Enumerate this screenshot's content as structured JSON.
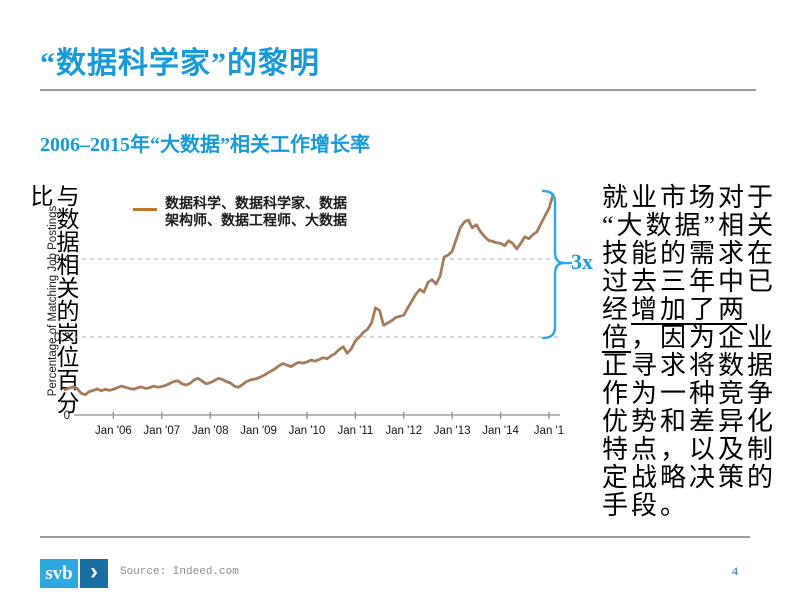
{
  "slide": {
    "title": "“数据科学家”的黎明",
    "subtitle": "2006–2015年“大数据”相关工作增长率",
    "left_axis_caption": "与数据相关的岗位百分比",
    "right_text": {
      "segments": [
        {
          "text": "就业市场对于\n“大数据”相关\n技能的需求在\n过去三年中已\n经",
          "underline": false
        },
        {
          "text": "增加了两\n倍",
          "underline": true
        },
        {
          "text": "，因为企业\n正寻求将数据\n作为一种竞争\n优势和差异化\n特点，以及制\n定战略决策的\n手段。",
          "underline": false
        }
      ]
    },
    "footer": {
      "logo_text": "svb",
      "logo_chevron": "›",
      "source": "Source: Indeed.com",
      "page_number": "4"
    }
  },
  "chart_data": {
    "type": "line",
    "title": "2006–2015年“大数据”相关工作增长率",
    "xlabel": "",
    "ylabel": "Percentage of Matching Job Postings",
    "legend_label": "数据科学、数据科学家、数据\n架构师、数据工程师、大数据",
    "legend_position": "top-left",
    "grid": "horizontal dashed at 0.2 and 0.4",
    "x_start": "2005-01",
    "x_end": "2015-02",
    "x_interval": "monthly",
    "x_tick_labels": [
      "Jan '06",
      "Jan '07",
      "Jan '08",
      "Jan '09",
      "Jan '10",
      "Jan '11",
      "Jan '12",
      "Jan '13",
      "Jan '14",
      "Jan '1"
    ],
    "y_ticks": [
      0,
      0.2,
      0.4
    ],
    "ylim": [
      0,
      0.6
    ],
    "annotation": {
      "label": "3x",
      "range": [
        0.2,
        0.57
      ]
    },
    "series": [
      {
        "name": "数据科学、数据科学家、数据架构师、数据工程师、大数据",
        "color": "#a87b5c",
        "values": [
          0.065,
          0.069,
          0.072,
          0.068,
          0.056,
          0.052,
          0.06,
          0.063,
          0.067,
          0.062,
          0.066,
          0.063,
          0.066,
          0.07,
          0.074,
          0.071,
          0.068,
          0.066,
          0.07,
          0.072,
          0.068,
          0.07,
          0.074,
          0.071,
          0.073,
          0.076,
          0.081,
          0.086,
          0.088,
          0.08,
          0.077,
          0.081,
          0.09,
          0.094,
          0.087,
          0.08,
          0.083,
          0.088,
          0.094,
          0.091,
          0.086,
          0.082,
          0.074,
          0.071,
          0.078,
          0.086,
          0.09,
          0.092,
          0.095,
          0.1,
          0.106,
          0.112,
          0.118,
          0.126,
          0.132,
          0.128,
          0.124,
          0.13,
          0.135,
          0.133,
          0.136,
          0.141,
          0.138,
          0.142,
          0.147,
          0.144,
          0.152,
          0.158,
          0.168,
          0.175,
          0.158,
          0.17,
          0.19,
          0.2,
          0.212,
          0.22,
          0.236,
          0.275,
          0.268,
          0.23,
          0.236,
          0.242,
          0.25,
          0.253,
          0.256,
          0.275,
          0.292,
          0.31,
          0.322,
          0.315,
          0.34,
          0.347,
          0.336,
          0.356,
          0.405,
          0.41,
          0.42,
          0.45,
          0.48,
          0.495,
          0.5,
          0.48,
          0.488,
          0.47,
          0.458,
          0.448,
          0.445,
          0.442,
          0.44,
          0.434,
          0.447,
          0.44,
          0.426,
          0.44,
          0.457,
          0.452,
          0.462,
          0.47,
          0.49,
          0.51,
          0.53,
          0.565
        ]
      }
    ]
  },
  "colors": {
    "accent_blue": "#189ad6",
    "brace_blue": "#2aa9e2",
    "line_brown": "#a87b5c",
    "legend_dash_orange": "#c0772b",
    "logo_light_blue": "#2ea7de",
    "logo_dark_blue": "#1a6da1",
    "rule_gray": "#9b9b9b"
  }
}
